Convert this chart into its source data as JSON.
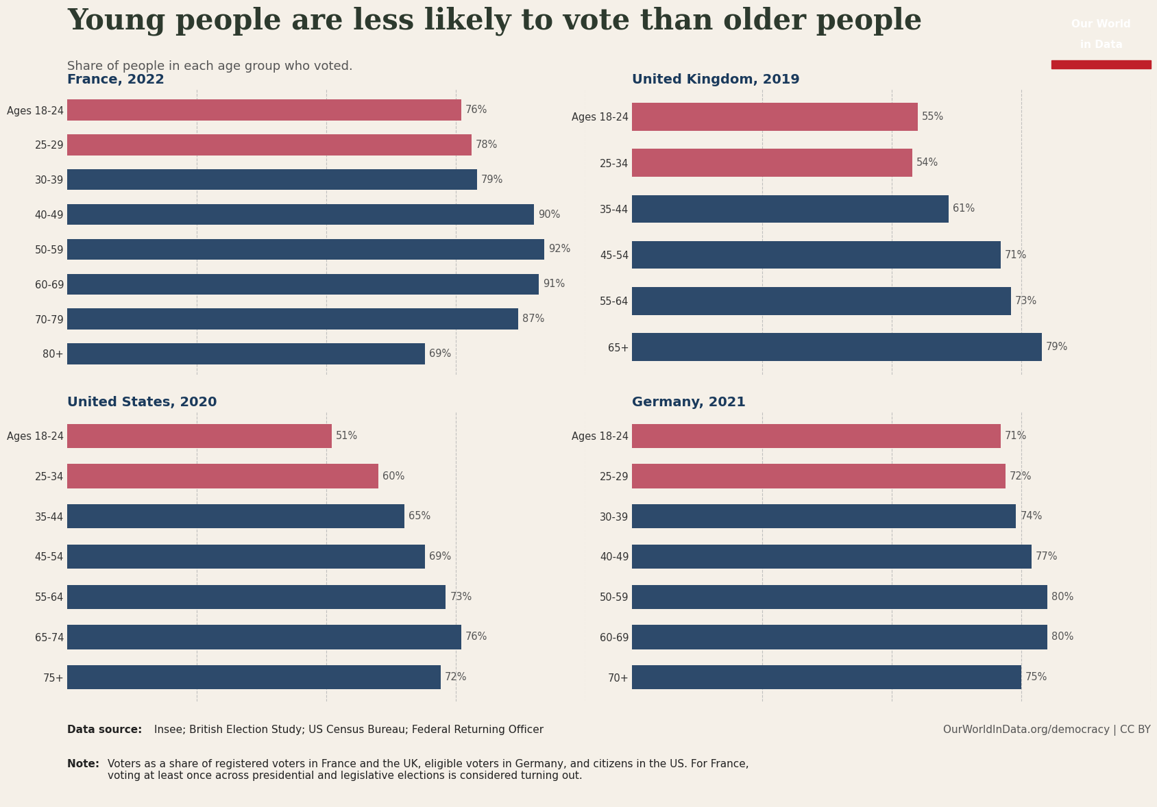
{
  "title": "Young people are less likely to vote than older people",
  "subtitle": "Share of people in each age group who voted.",
  "background_color": "#f5f0e8",
  "bar_color_young": "#c0586a",
  "bar_color_old": "#2d4a6b",
  "title_color": "#2d3a2e",
  "subtitle_color": "#555555",
  "subheading_color": "#1a3a5c",
  "value_label_color": "#555555",
  "tick_label_color": "#333333",
  "grid_color": "#bbbbbb",
  "france": {
    "labels": [
      "Ages 18-24",
      "25-29",
      "30-39",
      "40-49",
      "50-59",
      "60-69",
      "70-79",
      "80+"
    ],
    "values": [
      76,
      78,
      79,
      90,
      92,
      91,
      87,
      69
    ],
    "young_count": 2
  },
  "uk": {
    "labels": [
      "Ages 18-24",
      "25-34",
      "35-44",
      "45-54",
      "55-64",
      "65+"
    ],
    "values": [
      55,
      54,
      61,
      71,
      73,
      79
    ],
    "young_count": 2
  },
  "us": {
    "labels": [
      "Ages 18-24",
      "25-34",
      "35-44",
      "45-54",
      "55-64",
      "65-74",
      "75+"
    ],
    "values": [
      51,
      60,
      65,
      69,
      73,
      76,
      72
    ],
    "young_count": 2
  },
  "germany": {
    "labels": [
      "Ages 18-24",
      "25-29",
      "30-39",
      "40-49",
      "50-59",
      "60-69",
      "70+"
    ],
    "values": [
      71,
      72,
      74,
      77,
      80,
      80,
      75
    ],
    "young_count": 2
  },
  "logo_bg": "#1a3a5c",
  "logo_stripe": "#c0202a",
  "logo_line1": "Our World",
  "logo_line2": "in Data",
  "datasource_label": "Data source: ",
  "datasource_value": "Insee; British Election Study; US Census Bureau; Federal Returning Officer",
  "website": "OurWorldInData.org/democracy | CC BY",
  "note_label": "Note: ",
  "note_value": "Voters as a share of registered voters in France and the UK, eligible voters in Germany, and citizens in the US. For France,\nvoting at least once across presidential and legislative elections is considered turning out."
}
